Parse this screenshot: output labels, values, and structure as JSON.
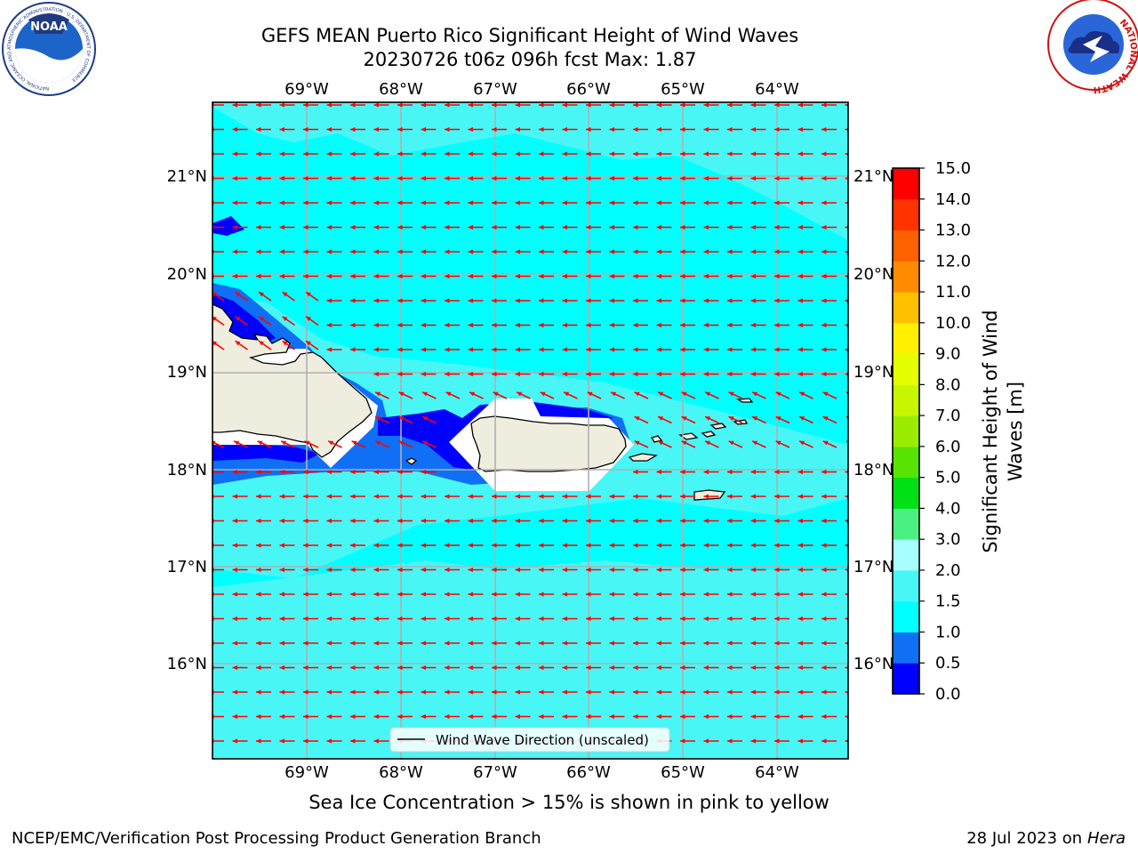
{
  "title_line1": "GEFS MEAN Puerto Rico Significant Height of Wind Waves",
  "title_line2": "20230726 t06z 096h fcst   Max: 1.87",
  "caption": "Sea Ice Concentration > 15% is shown in pink to yellow",
  "footer_left": "NCEP/EMC/Verification Post Processing Product Generation Branch",
  "footer_date": "28 Jul 2023 on ",
  "footer_host": "Hera",
  "legend_label": "Wind Wave Direction (unscaled)",
  "colorbar": {
    "label": "Significant Height of Wind Waves [m]",
    "label_lines": [
      "Significant Height of Wind",
      "Waves [m]"
    ],
    "ticks": [
      "0.0",
      "0.5",
      "1.0",
      "1.5",
      "2.0",
      "3.0",
      "4.0",
      "5.0",
      "6.0",
      "7.0",
      "8.0",
      "9.0",
      "10.0",
      "11.0",
      "12.0",
      "13.0",
      "14.0",
      "15.0"
    ],
    "colors": [
      "#0000ff",
      "#0f6ff5",
      "#00ffff",
      "#49f6f6",
      "#a8ffff",
      "#4bf083",
      "#00e115",
      "#56e400",
      "#9cec00",
      "#c8f500",
      "#e6ff00",
      "#ffef00",
      "#ffc000",
      "#ff8c00",
      "#ff6000",
      "#ff3300",
      "#ff0000"
    ]
  },
  "axes": {
    "lon_labels": [
      "69°W",
      "68°W",
      "67°W",
      "66°W",
      "65°W",
      "64°W"
    ],
    "lat_labels": [
      "21°N",
      "20°N",
      "19°N",
      "18°N",
      "17°N",
      "16°N"
    ]
  },
  "map_colors": {
    "land": "#efedde",
    "deep": "#0000ff",
    "shallow": "#0f6ff5",
    "sea_1": "#00ffff",
    "sea_2": "#49f6f6",
    "arrow": "#ff0000",
    "grid": "#b0b0b0"
  },
  "logos": {
    "left": "NOAA",
    "left_ring": "NATIONAL OCEANIC AND ATMOSPHERIC ADMINISTRATION · U.S. DEPARTMENT OF COMMERCE",
    "right_ring": "NATIONAL WEATHER SERVICE"
  }
}
